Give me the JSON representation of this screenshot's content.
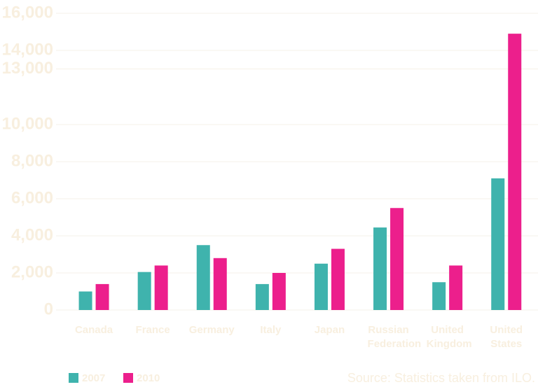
{
  "chart_data": {
    "type": "bar",
    "categories": [
      "Canada",
      "France",
      "Germany",
      "Italy",
      "Japan",
      "Russian Federation",
      "United Kingdom",
      "United States"
    ],
    "series": [
      {
        "name": "2007",
        "color": "#3fb3ad",
        "values": [
          1000,
          2050,
          3500,
          1400,
          2500,
          4450,
          1500,
          7100
        ]
      },
      {
        "name": "2010",
        "color": "#ec1f8c",
        "values": [
          1400,
          2400,
          2800,
          2000,
          3300,
          5500,
          2400,
          14900
        ]
      }
    ],
    "ylim": [
      0,
      16000
    ],
    "yticks": [
      0,
      {
        "value": 2000,
        "label": "2,000"
      },
      {
        "value": 4000,
        "label": "4,000"
      },
      {
        "value": 6000,
        "label": "6,000"
      },
      {
        "value": 8000,
        "label": "8,000"
      },
      {
        "value": 10000,
        "label": "10,000"
      },
      {
        "value": 13000,
        "label": "13,000"
      },
      {
        "value": 14000,
        "label": "14,000"
      },
      {
        "value": 16000,
        "label": "16,000"
      }
    ],
    "grid": true,
    "legend": "bottom-left",
    "source": "Source: Statistics taken from ILO."
  }
}
